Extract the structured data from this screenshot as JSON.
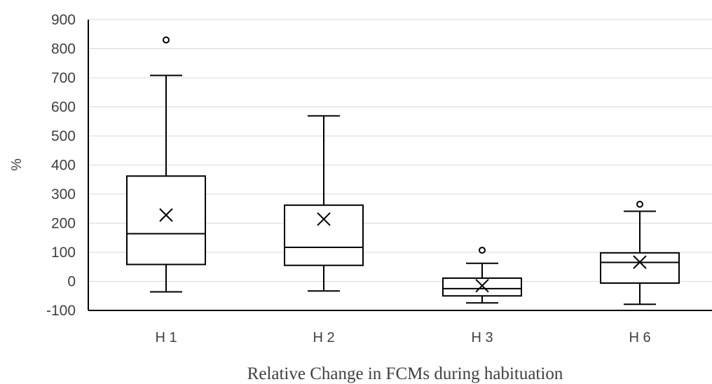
{
  "chart_data": {
    "type": "boxplot",
    "title": "",
    "xlabel": "Relative Change in FCMs during habituation",
    "ylabel": "%",
    "ylim": [
      -100,
      900
    ],
    "yticks": [
      -100,
      0,
      100,
      200,
      300,
      400,
      500,
      600,
      700,
      800,
      900
    ],
    "grid": true,
    "legend": "none",
    "categories": [
      "H 1",
      "H 2",
      "H 3",
      "H 6"
    ],
    "boxes": [
      {
        "category": "H 1",
        "min": -36,
        "q1": 58,
        "median": 164,
        "q3": 362,
        "max": 708,
        "mean": 228,
        "outliers": [
          830
        ]
      },
      {
        "category": "H 2",
        "min": -33,
        "q1": 55,
        "median": 117,
        "q3": 262,
        "max": 569,
        "mean": 214,
        "outliers": []
      },
      {
        "category": "H 3",
        "min": -74,
        "q1": -50,
        "median": -25,
        "q3": 11,
        "max": 62,
        "mean": -15,
        "outliers": [
          107
        ]
      },
      {
        "category": "H 6",
        "min": -79,
        "q1": -6,
        "median": 65,
        "q3": 98,
        "max": 241,
        "mean": 66,
        "outliers": [
          265
        ]
      }
    ],
    "colors": {
      "box_stroke": "#000000",
      "box_fill": "#ffffff",
      "grid": "#d9d9d9",
      "text": "#404040"
    }
  }
}
